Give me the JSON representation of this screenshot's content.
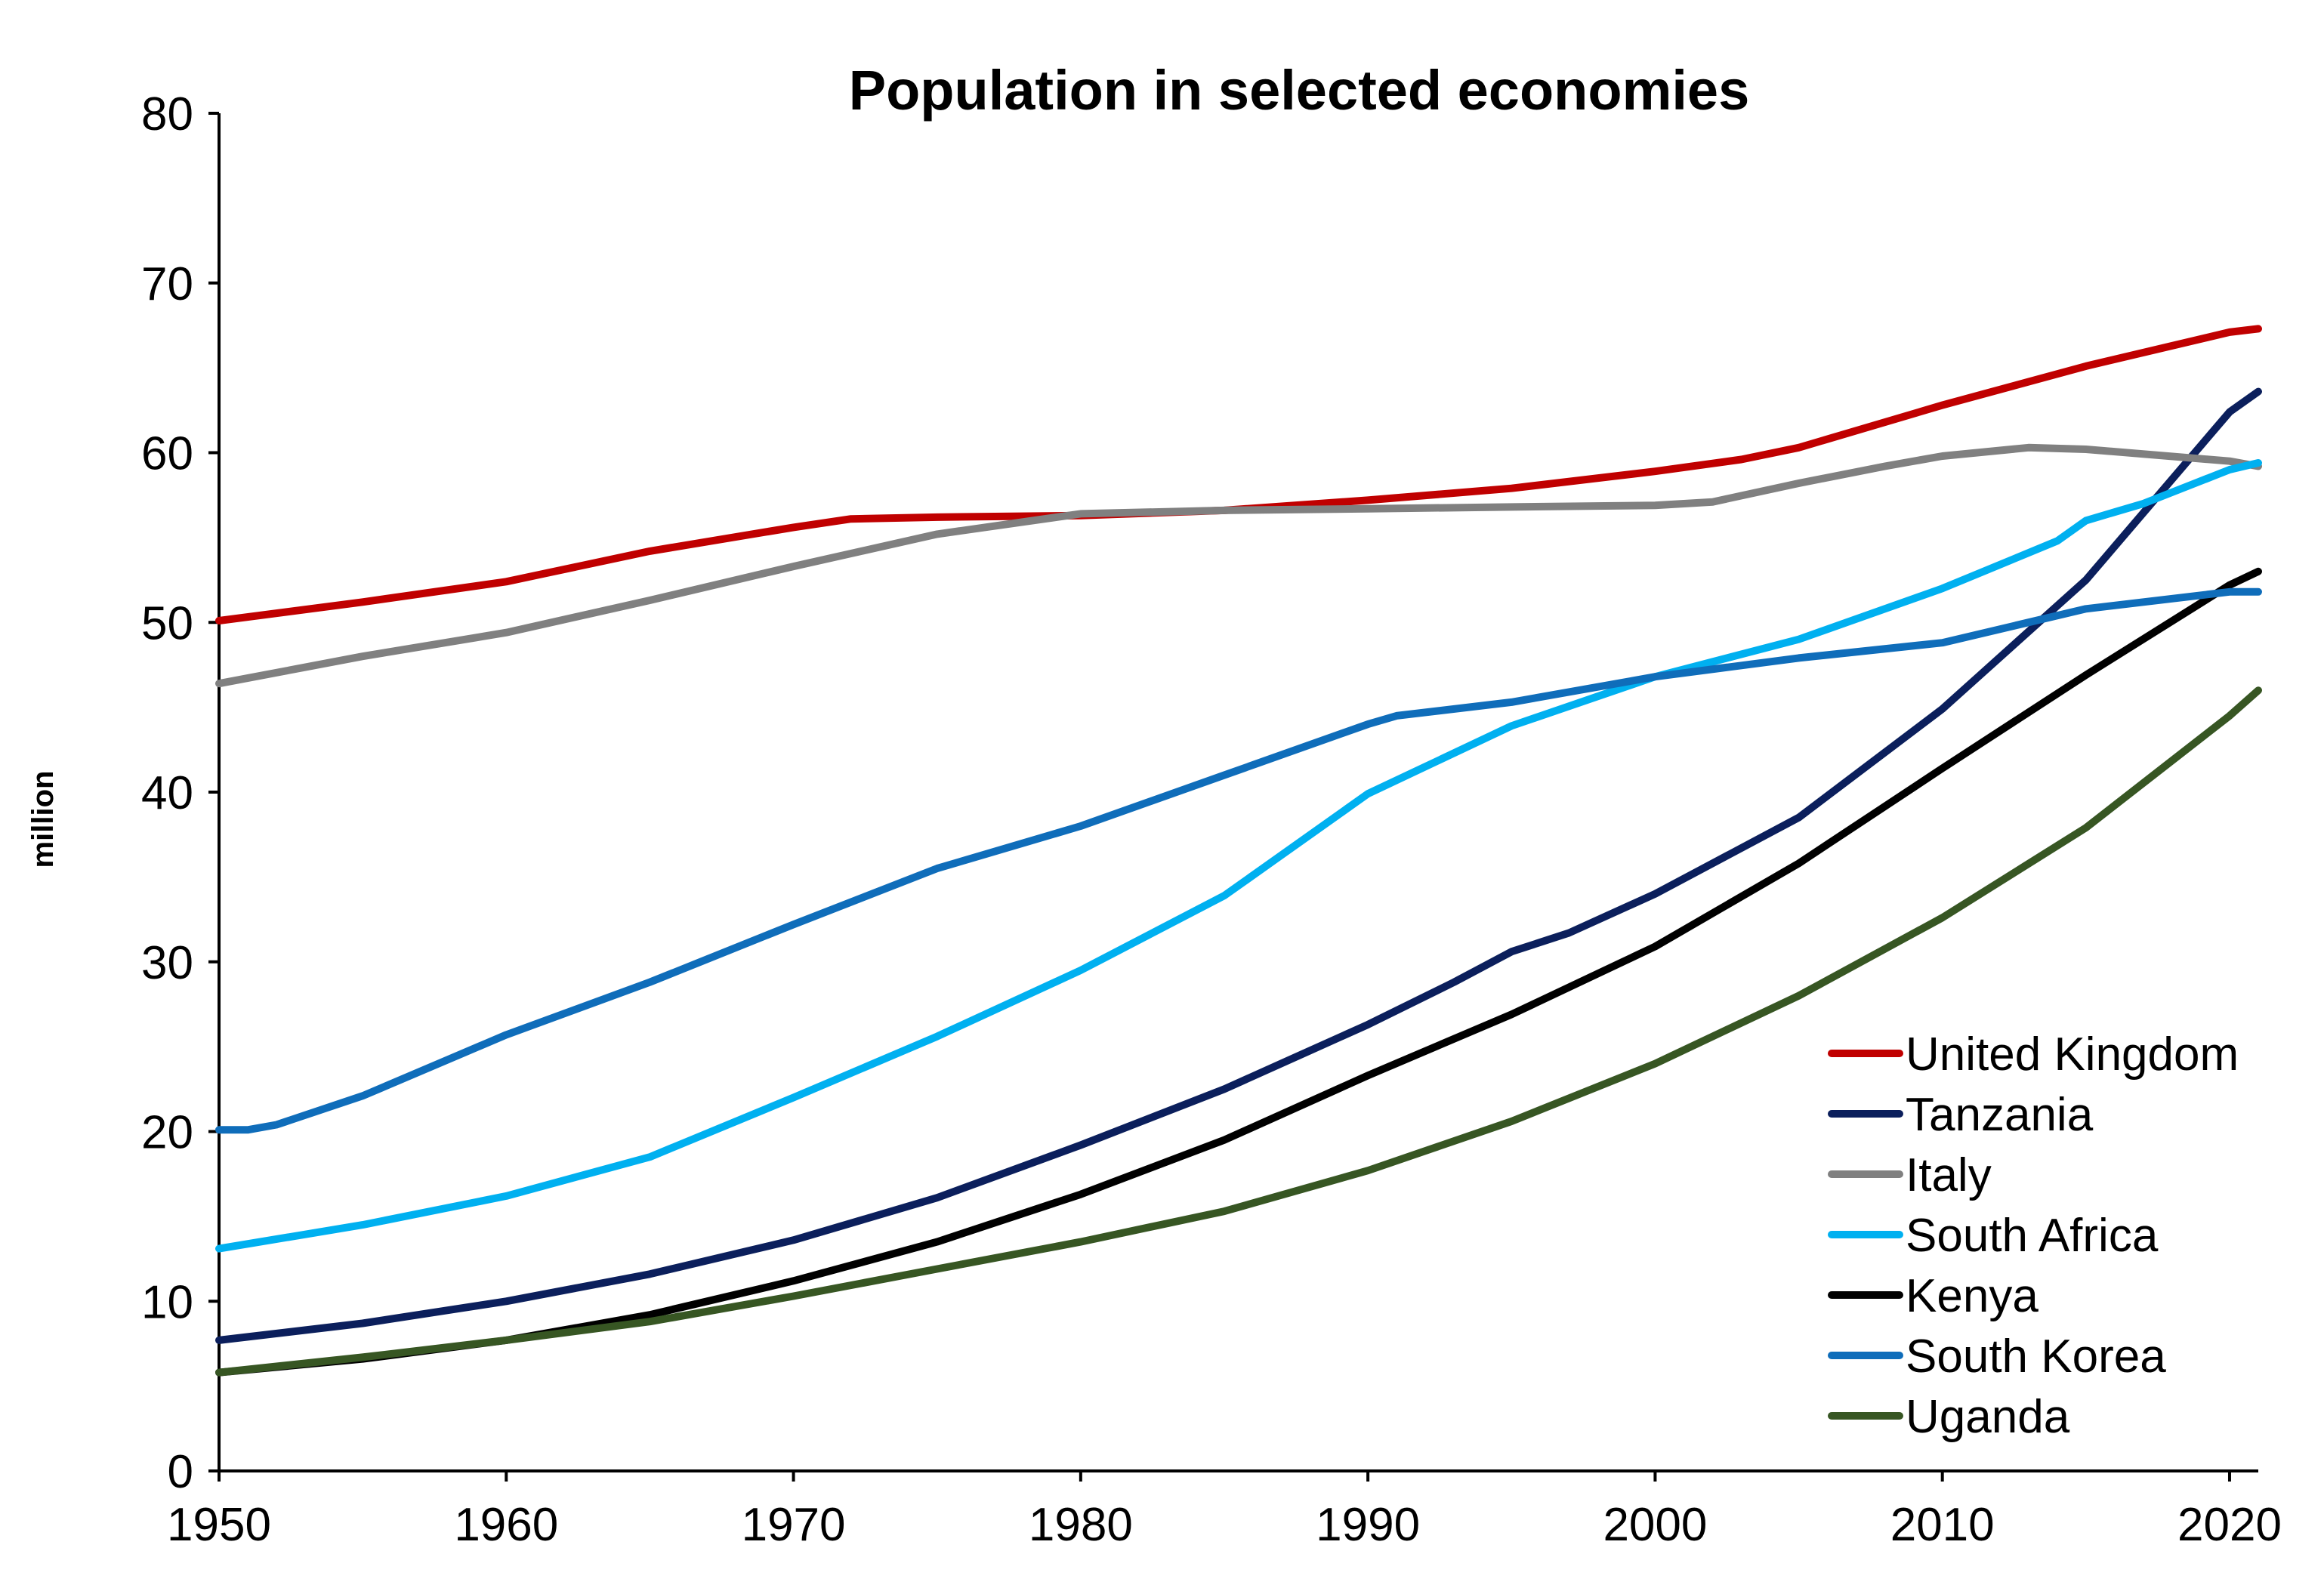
{
  "chart_data": {
    "type": "line",
    "title": "Population in selected economies",
    "ylabel": "million",
    "xlabel": "",
    "xlim": [
      1950,
      2021
    ],
    "ylim": [
      0,
      80
    ],
    "x_ticks": [
      1950,
      1960,
      1970,
      1980,
      1990,
      2000,
      2010,
      2020
    ],
    "y_ticks": [
      0,
      10,
      20,
      30,
      40,
      50,
      60,
      70,
      80
    ],
    "grid": false,
    "legend_position": "bottom-right",
    "series": [
      {
        "name": "United Kingdom",
        "color": "#C00000",
        "points": [
          [
            1950,
            50.1
          ],
          [
            1955,
            51.2
          ],
          [
            1960,
            52.4
          ],
          [
            1965,
            54.2
          ],
          [
            1970,
            55.6
          ],
          [
            1972,
            56.1
          ],
          [
            1975,
            56.2
          ],
          [
            1980,
            56.3
          ],
          [
            1985,
            56.6
          ],
          [
            1990,
            57.2
          ],
          [
            1995,
            57.9
          ],
          [
            2000,
            58.9
          ],
          [
            2003,
            59.6
          ],
          [
            2005,
            60.3
          ],
          [
            2010,
            62.8
          ],
          [
            2015,
            65.1
          ],
          [
            2020,
            67.1
          ],
          [
            2021,
            67.3
          ]
        ]
      },
      {
        "name": "Tanzania",
        "color": "#0B1F5C",
        "points": [
          [
            1950,
            7.7
          ],
          [
            1955,
            8.7
          ],
          [
            1960,
            10.0
          ],
          [
            1965,
            11.6
          ],
          [
            1970,
            13.6
          ],
          [
            1975,
            16.1
          ],
          [
            1980,
            19.2
          ],
          [
            1985,
            22.5
          ],
          [
            1990,
            26.3
          ],
          [
            1993,
            28.8
          ],
          [
            1995,
            30.6
          ],
          [
            1997,
            31.7
          ],
          [
            2000,
            34.0
          ],
          [
            2005,
            38.5
          ],
          [
            2010,
            44.9
          ],
          [
            2015,
            52.5
          ],
          [
            2020,
            62.4
          ],
          [
            2021,
            63.6
          ]
        ]
      },
      {
        "name": "Italy",
        "color": "#808080",
        "points": [
          [
            1950,
            46.4
          ],
          [
            1955,
            48.0
          ],
          [
            1960,
            49.4
          ],
          [
            1965,
            51.3
          ],
          [
            1970,
            53.3
          ],
          [
            1975,
            55.2
          ],
          [
            1980,
            56.4
          ],
          [
            1985,
            56.6
          ],
          [
            1990,
            56.7
          ],
          [
            1995,
            56.8
          ],
          [
            2000,
            56.9
          ],
          [
            2002,
            57.1
          ],
          [
            2005,
            58.2
          ],
          [
            2008,
            59.2
          ],
          [
            2010,
            59.8
          ],
          [
            2013,
            60.3
          ],
          [
            2015,
            60.2
          ],
          [
            2020,
            59.5
          ],
          [
            2021,
            59.2
          ]
        ]
      },
      {
        "name": "South Africa",
        "color": "#00B0F0",
        "points": [
          [
            1950,
            13.1
          ],
          [
            1955,
            14.5
          ],
          [
            1960,
            16.2
          ],
          [
            1965,
            18.5
          ],
          [
            1970,
            22.0
          ],
          [
            1975,
            25.6
          ],
          [
            1980,
            29.5
          ],
          [
            1985,
            33.9
          ],
          [
            1990,
            39.9
          ],
          [
            1995,
            43.9
          ],
          [
            2000,
            46.8
          ],
          [
            2005,
            49.0
          ],
          [
            2010,
            52.0
          ],
          [
            2014,
            54.8
          ],
          [
            2015,
            56.0
          ],
          [
            2017,
            57.0
          ],
          [
            2020,
            59.0
          ],
          [
            2021,
            59.4
          ]
        ]
      },
      {
        "name": "Kenya",
        "color": "#000000",
        "points": [
          [
            1950,
            5.8
          ],
          [
            1955,
            6.6
          ],
          [
            1960,
            7.7
          ],
          [
            1965,
            9.2
          ],
          [
            1970,
            11.2
          ],
          [
            1975,
            13.5
          ],
          [
            1980,
            16.3
          ],
          [
            1985,
            19.5
          ],
          [
            1990,
            23.3
          ],
          [
            1995,
            26.9
          ],
          [
            2000,
            30.9
          ],
          [
            2005,
            35.8
          ],
          [
            2010,
            41.4
          ],
          [
            2015,
            46.9
          ],
          [
            2020,
            52.2
          ],
          [
            2021,
            53.0
          ]
        ]
      },
      {
        "name": "South Korea",
        "color": "#0F6DBA",
        "points": [
          [
            1950,
            20.1
          ],
          [
            1951,
            20.1
          ],
          [
            1952,
            20.4
          ],
          [
            1955,
            22.1
          ],
          [
            1960,
            25.7
          ],
          [
            1965,
            28.8
          ],
          [
            1970,
            32.2
          ],
          [
            1975,
            35.5
          ],
          [
            1980,
            38.0
          ],
          [
            1985,
            41.0
          ],
          [
            1990,
            44.0
          ],
          [
            1991,
            44.5
          ],
          [
            1995,
            45.3
          ],
          [
            2000,
            46.8
          ],
          [
            2005,
            47.9
          ],
          [
            2010,
            48.8
          ],
          [
            2015,
            50.8
          ],
          [
            2020,
            51.8
          ],
          [
            2021,
            51.8
          ]
        ]
      },
      {
        "name": "Uganda",
        "color": "#375623",
        "points": [
          [
            1950,
            5.8
          ],
          [
            1955,
            6.7
          ],
          [
            1960,
            7.7
          ],
          [
            1965,
            8.8
          ],
          [
            1970,
            10.3
          ],
          [
            1975,
            11.9
          ],
          [
            1980,
            13.5
          ],
          [
            1985,
            15.3
          ],
          [
            1990,
            17.7
          ],
          [
            1995,
            20.6
          ],
          [
            2000,
            24.0
          ],
          [
            2005,
            28.0
          ],
          [
            2010,
            32.6
          ],
          [
            2015,
            37.9
          ],
          [
            2020,
            44.5
          ],
          [
            2021,
            46.0
          ]
        ]
      }
    ]
  }
}
